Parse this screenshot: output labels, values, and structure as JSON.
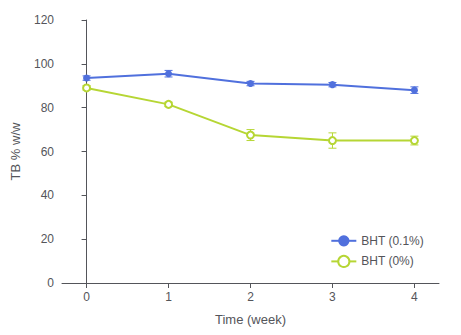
{
  "chart_data": {
    "type": "line",
    "xlabel": "Time (week)",
    "ylabel": "TB % w/w",
    "x": [
      0,
      1,
      2,
      3,
      4
    ],
    "series": [
      {
        "name": "BHT (0.1%)",
        "marker": "filled",
        "values": [
          93.5,
          95.5,
          91.0,
          90.5,
          88.0
        ],
        "errors": [
          1.0,
          1.5,
          1.0,
          1.0,
          1.5
        ]
      },
      {
        "name": "BHT (0%)",
        "marker": "open",
        "values": [
          89.0,
          81.5,
          67.5,
          65.0,
          65.0
        ],
        "errors": [
          1.0,
          1.0,
          2.5,
          3.5,
          2.0
        ]
      }
    ],
    "xlim": [
      -0.3,
      4.3
    ],
    "xticks": [
      0,
      1,
      2,
      3,
      4
    ],
    "ylim": [
      0,
      120
    ],
    "yticks": [
      0,
      20,
      40,
      60,
      80,
      100,
      120
    ],
    "grid": false,
    "legend": "lower right"
  }
}
